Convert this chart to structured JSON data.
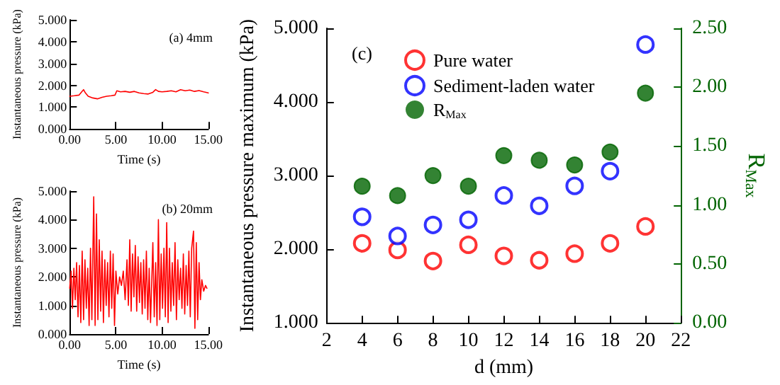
{
  "chart_data": [
    {
      "type": "line",
      "xlabel": "Time (s)",
      "ylabel": "Instantaneous pressure (kPa)",
      "annotations": [
        "(a) 4mm"
      ],
      "xlim": [
        0,
        15
      ],
      "xticks": [
        {
          "value": 0,
          "label": "0.00"
        },
        {
          "value": 5,
          "label": "5.00"
        },
        {
          "value": 10,
          "label": "10.00"
        },
        {
          "value": 15,
          "label": "15.00"
        }
      ],
      "ylim": [
        0,
        5
      ],
      "yticks": [
        {
          "value": 0,
          "label": "0.000"
        },
        {
          "value": 1,
          "label": "1.000"
        },
        {
          "value": 2,
          "label": "2.000"
        },
        {
          "value": 3,
          "label": "3.000"
        },
        {
          "value": 4,
          "label": "4.000"
        },
        {
          "value": 5,
          "label": "5.000"
        }
      ],
      "grid": false,
      "legend": false,
      "marker": "none",
      "line_style": "solid",
      "series": [
        {
          "color": "#ff0000",
          "x": [
            0,
            0.5,
            1.0,
            1.3,
            1.5,
            1.7,
            2.0,
            2.5,
            3.0,
            3.5,
            4.0,
            4.5,
            4.9,
            5.1,
            5.5,
            6.0,
            6.5,
            7.0,
            7.5,
            8.0,
            8.5,
            9.0,
            9.3,
            9.6,
            10.0,
            10.5,
            11.0,
            11.5,
            12.0,
            12.5,
            13.0,
            13.5,
            14.0,
            14.5,
            15.0
          ],
          "values": [
            1.5,
            1.52,
            1.55,
            1.7,
            1.8,
            1.65,
            1.5,
            1.42,
            1.38,
            1.45,
            1.5,
            1.52,
            1.55,
            1.75,
            1.7,
            1.72,
            1.68,
            1.72,
            1.65,
            1.62,
            1.6,
            1.68,
            1.8,
            1.72,
            1.7,
            1.72,
            1.75,
            1.7,
            1.8,
            1.75,
            1.78,
            1.72,
            1.76,
            1.7,
            1.65
          ]
        }
      ]
    },
    {
      "type": "line",
      "xlabel": "Time (s)",
      "ylabel": "Instantaneous pressure (kPa)",
      "annotations": [
        "(b) 20mm"
      ],
      "xlim": [
        0,
        15
      ],
      "xticks": [
        {
          "value": 0,
          "label": "0.00"
        },
        {
          "value": 5,
          "label": "5.00"
        },
        {
          "value": 10,
          "label": "10.00"
        },
        {
          "value": 15,
          "label": "15.00"
        }
      ],
      "ylim": [
        0,
        5
      ],
      "yticks": [
        {
          "value": 0,
          "label": "0.000"
        },
        {
          "value": 1,
          "label": "1.000"
        },
        {
          "value": 2,
          "label": "2.000"
        },
        {
          "value": 3,
          "label": "3.000"
        },
        {
          "value": 4,
          "label": "4.000"
        },
        {
          "value": 5,
          "label": "5.000"
        }
      ],
      "grid": false,
      "legend": false,
      "marker": "none",
      "line_style": "solid",
      "series": [
        {
          "color": "#ff0000",
          "x": [
            0,
            0.15,
            0.3,
            0.45,
            0.6,
            0.75,
            0.9,
            1.05,
            1.2,
            1.35,
            1.5,
            1.65,
            1.8,
            1.95,
            2.1,
            2.25,
            2.4,
            2.6,
            2.75,
            2.9,
            3.05,
            3.2,
            3.35,
            3.5,
            3.65,
            3.8,
            3.95,
            4.1,
            4.25,
            4.4,
            4.55,
            4.7,
            4.85,
            5.0,
            5.2,
            5.4,
            5.6,
            5.8,
            6.0,
            6.2,
            6.35,
            6.5,
            6.65,
            6.8,
            6.95,
            7.1,
            7.25,
            7.4,
            7.55,
            7.7,
            7.85,
            8.0,
            8.15,
            8.3,
            8.45,
            8.6,
            8.75,
            9.0,
            9.15,
            9.3,
            9.45,
            9.6,
            9.75,
            9.9,
            10.05,
            10.2,
            10.35,
            10.5,
            10.65,
            10.8,
            10.95,
            11.1,
            11.25,
            11.4,
            11.55,
            11.7,
            11.85,
            12.0,
            12.15,
            12.3,
            12.45,
            12.6,
            12.75,
            12.9,
            13.05,
            13.2,
            13.4,
            13.55,
            13.7,
            13.85,
            14.0,
            14.15,
            14.3,
            14.5,
            14.7,
            14.85
          ],
          "values": [
            1.6,
            2.2,
            0.9,
            2.3,
            1.2,
            2.5,
            0.6,
            2.4,
            0.4,
            2.9,
            0.5,
            2.6,
            0.9,
            2.3,
            0.3,
            3.0,
            0.5,
            4.8,
            0.3,
            4.2,
            0.5,
            3.3,
            0.8,
            2.9,
            0.4,
            2.6,
            1.0,
            2.5,
            0.6,
            2.9,
            0.9,
            2.8,
            0.3,
            2.2,
            1.4,
            2.0,
            1.7,
            2.2,
            1.2,
            2.6,
            1.0,
            3.3,
            0.8,
            2.8,
            1.3,
            3.1,
            0.8,
            2.7,
            1.1,
            2.5,
            0.7,
            2.6,
            0.9,
            2.9,
            0.5,
            2.3,
            0.4,
            3.2,
            0.6,
            2.5,
            0.3,
            4.0,
            0.5,
            2.8,
            0.9,
            3.0,
            0.6,
            3.9,
            0.4,
            3.0,
            0.8,
            2.5,
            1.0,
            3.2,
            0.5,
            2.6,
            1.2,
            2.3,
            0.9,
            2.8,
            0.7,
            2.4,
            1.0,
            2.9,
            0.6,
            3.0,
            3.6,
            0.2,
            3.2,
            0.5,
            2.5,
            1.2,
            1.9,
            1.5,
            1.7,
            1.6
          ]
        }
      ]
    },
    {
      "type": "scatter",
      "xlabel": "d (mm)",
      "ylabel": "Instantaneous pressure maximum (kPa)",
      "y2label": "R$_{Max}$",
      "annotations": [
        "(c)"
      ],
      "x": [
        4,
        6,
        8,
        10,
        12,
        14,
        16,
        18,
        20
      ],
      "xlim": [
        2,
        22
      ],
      "xticks": [
        2,
        4,
        6,
        8,
        10,
        12,
        14,
        16,
        18,
        20,
        22
      ],
      "ylim": [
        1,
        5
      ],
      "yticks": [
        {
          "value": 1,
          "label": "1.000"
        },
        {
          "value": 2,
          "label": "2.000"
        },
        {
          "value": 3,
          "label": "3.000"
        },
        {
          "value": 4,
          "label": "4.000"
        },
        {
          "value": 5,
          "label": "5.000"
        }
      ],
      "y2lim": [
        0,
        2.5
      ],
      "y2ticks": [
        {
          "value": 0,
          "label": "0.00"
        },
        {
          "value": 0.5,
          "label": "0.50"
        },
        {
          "value": 1,
          "label": "1.00"
        },
        {
          "value": 1.5,
          "label": "1.50"
        },
        {
          "value": 2,
          "label": "2.00"
        },
        {
          "value": 2.5,
          "label": "2.50"
        }
      ],
      "grid": false,
      "legend": "top left",
      "marker": "circle",
      "series": [
        {
          "name": "Pure water",
          "color": "#ff0000",
          "values": [
            2.08,
            1.99,
            1.84,
            2.06,
            1.91,
            1.85,
            1.94,
            2.08,
            2.31
          ]
        },
        {
          "name": "Sediment-laden water",
          "color": "#0000ff",
          "values": [
            2.44,
            2.18,
            2.33,
            2.4,
            2.73,
            2.59,
            2.86,
            3.06,
            4.78
          ]
        },
        {
          "name": "R$_{Max}$",
          "color": "#006400",
          "axis": "y2",
          "values": [
            1.16,
            1.08,
            1.25,
            1.16,
            1.42,
            1.38,
            1.34,
            1.45,
            1.95
          ]
        }
      ]
    }
  ]
}
